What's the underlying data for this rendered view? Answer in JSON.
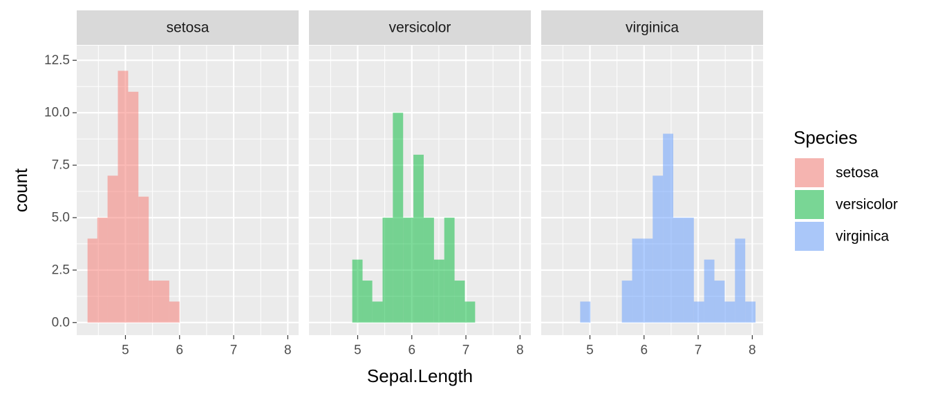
{
  "chart_data": {
    "type": "bar",
    "subtype": "faceted-histogram",
    "xlabel": "Sepal.Length",
    "ylabel": "count",
    "xlim": [
      4.1,
      8.2
    ],
    "ylim": [
      -0.6,
      13.2
    ],
    "x_ticks": [
      5,
      6,
      7,
      8
    ],
    "x_tick_labels": [
      "5",
      "6",
      "7",
      "8"
    ],
    "y_ticks": [
      0,
      2.5,
      5,
      7.5,
      10,
      12.5
    ],
    "y_tick_labels": [
      "0.0",
      "2.5",
      "5.0",
      "7.5",
      "10.0",
      "12.5"
    ],
    "grid": true,
    "legend": {
      "title": "Species",
      "position": "right",
      "entries": [
        "setosa",
        "versicolor",
        "virginica"
      ]
    },
    "facets": [
      {
        "name": "setosa",
        "color": "#F8766D",
        "bins": [
          {
            "x0": 4.3,
            "x1": 4.48,
            "count": 4
          },
          {
            "x0": 4.48,
            "x1": 4.67,
            "count": 5
          },
          {
            "x0": 4.67,
            "x1": 4.86,
            "count": 7
          },
          {
            "x0": 4.86,
            "x1": 5.05,
            "count": 12
          },
          {
            "x0": 5.05,
            "x1": 5.24,
            "count": 11
          },
          {
            "x0": 5.24,
            "x1": 5.43,
            "count": 6
          },
          {
            "x0": 5.43,
            "x1": 5.62,
            "count": 2
          },
          {
            "x0": 5.62,
            "x1": 5.81,
            "count": 2
          },
          {
            "x0": 5.81,
            "x1": 6.0,
            "count": 1
          }
        ]
      },
      {
        "name": "versicolor",
        "color": "#00BA38",
        "bins": [
          {
            "x0": 4.9,
            "x1": 5.09,
            "count": 3
          },
          {
            "x0": 5.09,
            "x1": 5.27,
            "count": 2
          },
          {
            "x0": 5.27,
            "x1": 5.46,
            "count": 1
          },
          {
            "x0": 5.46,
            "x1": 5.65,
            "count": 5
          },
          {
            "x0": 5.65,
            "x1": 5.84,
            "count": 10
          },
          {
            "x0": 5.84,
            "x1": 6.03,
            "count": 5
          },
          {
            "x0": 6.03,
            "x1": 6.22,
            "count": 8
          },
          {
            "x0": 6.22,
            "x1": 6.41,
            "count": 5
          },
          {
            "x0": 6.41,
            "x1": 6.6,
            "count": 3
          },
          {
            "x0": 6.6,
            "x1": 6.79,
            "count": 5
          },
          {
            "x0": 6.79,
            "x1": 6.98,
            "count": 2
          },
          {
            "x0": 6.98,
            "x1": 7.17,
            "count": 1
          }
        ]
      },
      {
        "name": "virginica",
        "color": "#619CFF",
        "bins": [
          {
            "x0": 4.82,
            "x1": 5.01,
            "count": 1
          },
          {
            "x0": 5.59,
            "x1": 5.78,
            "count": 2
          },
          {
            "x0": 5.78,
            "x1": 5.97,
            "count": 4
          },
          {
            "x0": 5.97,
            "x1": 6.16,
            "count": 4
          },
          {
            "x0": 6.16,
            "x1": 6.35,
            "count": 7
          },
          {
            "x0": 6.35,
            "x1": 6.54,
            "count": 9
          },
          {
            "x0": 6.54,
            "x1": 6.73,
            "count": 5
          },
          {
            "x0": 6.73,
            "x1": 6.92,
            "count": 5
          },
          {
            "x0": 6.92,
            "x1": 7.11,
            "count": 1
          },
          {
            "x0": 7.11,
            "x1": 7.3,
            "count": 3
          },
          {
            "x0": 7.3,
            "x1": 7.49,
            "count": 2
          },
          {
            "x0": 7.49,
            "x1": 7.68,
            "count": 1
          },
          {
            "x0": 7.68,
            "x1": 7.87,
            "count": 4
          },
          {
            "x0": 7.87,
            "x1": 8.06,
            "count": 1
          }
        ]
      }
    ]
  }
}
